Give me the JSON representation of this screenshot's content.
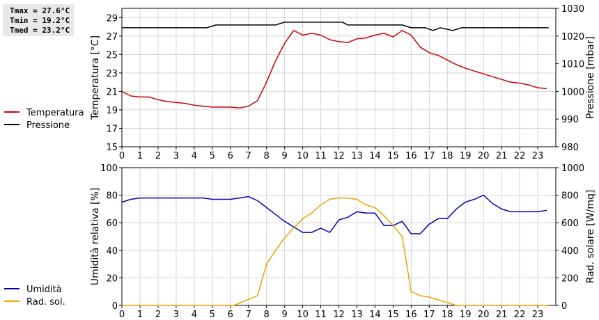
{
  "stats": {
    "tmax": "Tmax = 27.6°C",
    "tmin": "Tmin = 19.2°C",
    "tmed": "Tmed = 23.2°C"
  },
  "chart_data": [
    {
      "type": "line",
      "ylabel_left": "Temperatura [°C]",
      "ylabel_right": "Pressione [mbar]",
      "xlim": [
        0,
        24
      ],
      "xticks": [
        "0",
        "1",
        "2",
        "3",
        "4",
        "5",
        "6",
        "7",
        "8",
        "9",
        "10",
        "11",
        "12",
        "13",
        "14",
        "15",
        "16",
        "17",
        "18",
        "19",
        "20",
        "21",
        "22",
        "23"
      ],
      "ylim_left": [
        15,
        30
      ],
      "yticks_left": [
        "15",
        "17",
        "19",
        "21",
        "23",
        "25",
        "27",
        "29"
      ],
      "ylim_right": [
        980,
        1030
      ],
      "yticks_right": [
        "980",
        "990",
        "1000",
        "1010",
        "1020",
        "1030"
      ],
      "grid": true,
      "series": [
        {
          "name": "Temperatura",
          "color": "#cc0000",
          "axis": "left",
          "x": [
            0,
            0.5,
            1,
            1.5,
            2,
            2.5,
            3,
            3.5,
            4,
            4.5,
            5,
            5.5,
            6,
            6.5,
            7,
            7.5,
            8,
            8.5,
            9,
            9.5,
            10,
            10.5,
            11,
            11.5,
            12,
            12.5,
            13,
            13.5,
            14,
            14.5,
            15,
            15.5,
            16,
            16.5,
            17,
            17.5,
            18,
            18.5,
            19,
            19.5,
            20,
            20.5,
            21,
            21.5,
            22,
            22.5,
            23,
            23.5
          ],
          "y": [
            21.0,
            20.5,
            20.4,
            20.4,
            20.1,
            19.9,
            19.8,
            19.7,
            19.5,
            19.4,
            19.3,
            19.3,
            19.3,
            19.2,
            19.4,
            20.0,
            22.0,
            24.3,
            26.2,
            27.6,
            27.1,
            27.3,
            27.1,
            26.6,
            26.4,
            26.3,
            26.7,
            26.8,
            27.1,
            27.3,
            26.9,
            27.6,
            27.1,
            25.8,
            25.2,
            24.9,
            24.4,
            23.9,
            23.5,
            23.2,
            22.9,
            22.6,
            22.3,
            22.0,
            21.9,
            21.7,
            21.4,
            21.3
          ]
        },
        {
          "name": "Pressione",
          "color": "#000000",
          "axis": "right",
          "x": [
            0,
            4.7,
            5.2,
            8.5,
            9.0,
            12.2,
            12.5,
            15.5,
            16,
            16.8,
            17.2,
            17.6,
            18.3,
            18.8,
            23.6
          ],
          "y": [
            1023,
            1023,
            1024,
            1024,
            1025,
            1025,
            1024,
            1024,
            1023,
            1023,
            1022,
            1023,
            1022,
            1023,
            1023
          ]
        }
      ]
    },
    {
      "type": "line",
      "ylabel_left": "Umidità relativa [%]",
      "ylabel_right": "Rad. solare [W/mq]",
      "xlim": [
        0,
        24
      ],
      "xticks": [
        "0",
        "1",
        "2",
        "3",
        "4",
        "5",
        "6",
        "7",
        "8",
        "9",
        "10",
        "11",
        "12",
        "13",
        "14",
        "15",
        "16",
        "17",
        "18",
        "19",
        "20",
        "21",
        "22",
        "23"
      ],
      "ylim_left": [
        0,
        100
      ],
      "yticks_left": [
        "0",
        "20",
        "40",
        "60",
        "80",
        "100"
      ],
      "ylim_right": [
        0,
        1000
      ],
      "yticks_right": [
        "0",
        "200",
        "400",
        "600",
        "800",
        "1000"
      ],
      "grid": true,
      "series": [
        {
          "name": "Umidità",
          "color": "#0000bb",
          "axis": "left",
          "x": [
            0,
            0.5,
            1,
            1.5,
            2,
            2.5,
            3,
            3.5,
            4,
            4.5,
            5,
            5.5,
            6,
            6.5,
            7,
            7.5,
            8,
            8.5,
            9,
            9.5,
            10,
            10.5,
            11,
            11.5,
            12,
            12.5,
            13,
            13.5,
            14,
            14.5,
            15,
            15.5,
            16,
            16.5,
            17,
            17.5,
            18,
            18.5,
            19,
            19.5,
            20,
            20.5,
            21,
            21.5,
            22,
            22.5,
            23,
            23.5
          ],
          "y": [
            75,
            77,
            78,
            78,
            78,
            78,
            78,
            78,
            78,
            78,
            77,
            77,
            77,
            78,
            79,
            76,
            71,
            66,
            61,
            57,
            53,
            53,
            56,
            53,
            62,
            64,
            68,
            67,
            67,
            58,
            58,
            61,
            52,
            52,
            59,
            63,
            63,
            70,
            75,
            77,
            80,
            74,
            70,
            68,
            68,
            68,
            68,
            69
          ]
        },
        {
          "name": "Rad. sol.",
          "color": "#f0a000",
          "axis": "right",
          "x": [
            0,
            6.2,
            7.5,
            8,
            8.5,
            9,
            9.5,
            10,
            10.5,
            11,
            11.5,
            12,
            12.5,
            13,
            13.5,
            14,
            14.5,
            15,
            15.5,
            16,
            16.5,
            17,
            17.5,
            18,
            18.5,
            19,
            23.6
          ],
          "y": [
            0,
            0,
            70,
            300,
            400,
            490,
            560,
            630,
            670,
            730,
            770,
            780,
            780,
            770,
            730,
            710,
            650,
            580,
            500,
            100,
            70,
            60,
            40,
            20,
            0,
            0,
            0
          ]
        }
      ]
    }
  ]
}
